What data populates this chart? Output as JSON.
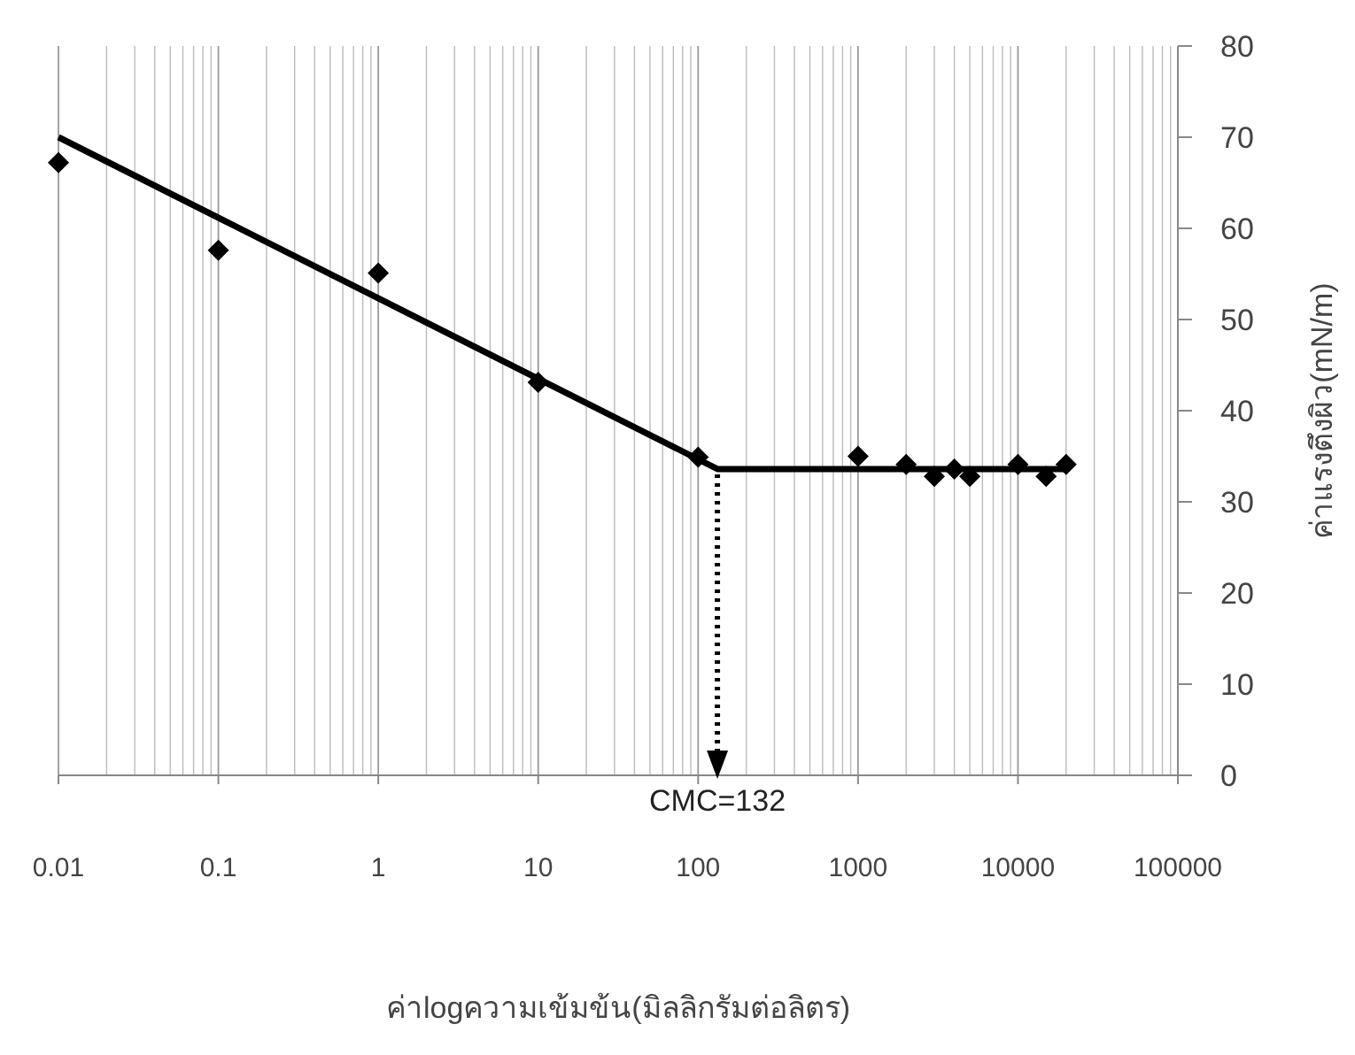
{
  "chart_data": {
    "type": "scatter",
    "xlabel": "ค่าlogความเข้มข้น(มิลลิกรัมต่อลิตร)",
    "ylabel": "ค่าแรงตึงผิว(mN/m)",
    "log": "x",
    "grid": "x",
    "marker": "diamond",
    "xlim": [
      0.01,
      100000
    ],
    "xticks": [
      0.01,
      0.1,
      1,
      10,
      100,
      1000,
      10000,
      100000
    ],
    "ylim": [
      0,
      80
    ],
    "yticks": [
      0,
      10,
      20,
      30,
      40,
      50,
      60,
      70,
      80
    ],
    "series": [
      {
        "color": "#000000",
        "x": [
          0.01,
          0.1,
          1,
          10,
          100,
          1000,
          2000,
          3000,
          4000,
          5000,
          10000,
          15000,
          20000
        ],
        "values": [
          67.2,
          57.6,
          55.1,
          43.1,
          34.9,
          35.0,
          34.1,
          32.8,
          33.6,
          32.8,
          34.1,
          32.8,
          34.1
        ]
      },
      {
        "type": "line",
        "color": "#000000",
        "marker": "none",
        "x": [
          0.01,
          132,
          20000
        ],
        "values": [
          70.0,
          33.6,
          33.6
        ]
      }
    ],
    "ref_lines": [
      {
        "axis": "x",
        "value": 132,
        "label": "CMC=132",
        "line_style": "dotted",
        "color": "#000000"
      }
    ]
  }
}
